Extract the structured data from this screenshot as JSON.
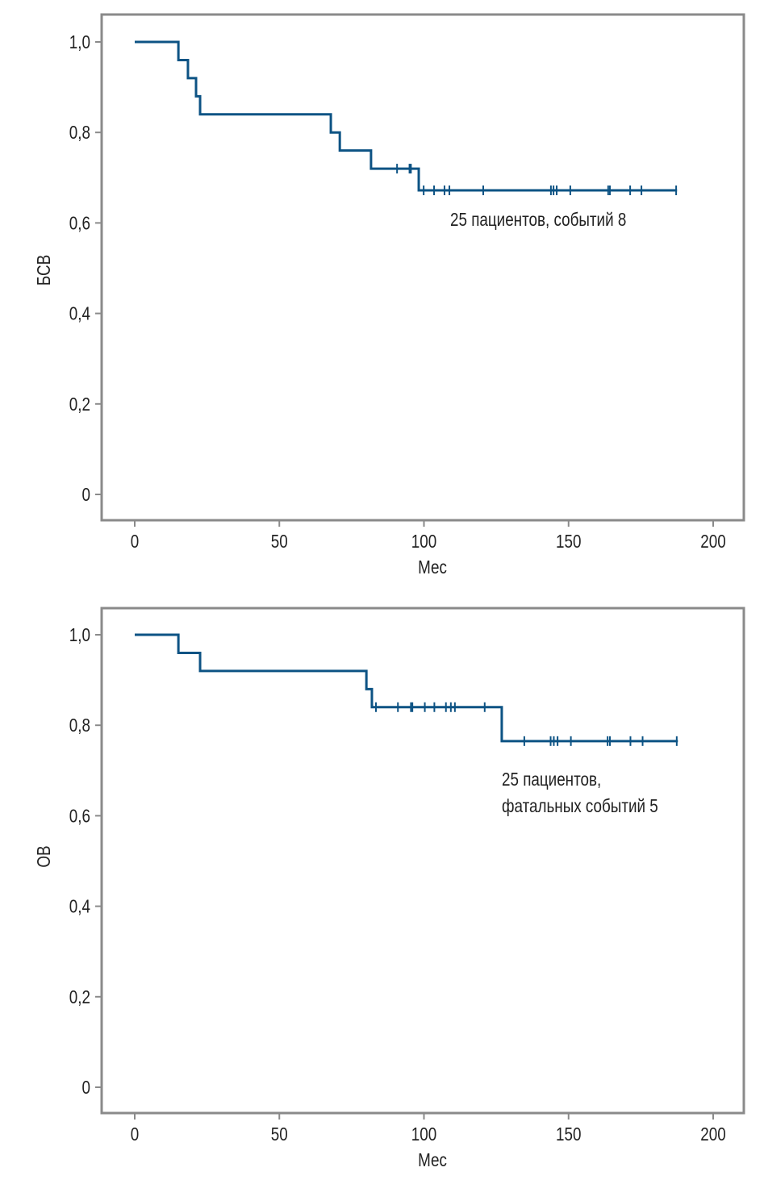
{
  "chart_data": [
    {
      "type": "line",
      "subtype": "kaplan-meier-step",
      "xlabel": "Мес",
      "ylabel": "БСВ",
      "xlim": [
        -11,
        211
      ],
      "ylim": [
        -0.06,
        1.06
      ],
      "xticks": [
        0,
        50,
        100,
        150,
        200
      ],
      "yticks": [
        0,
        0.2,
        0.4,
        0.6,
        0.8,
        1.0
      ],
      "xtick_labels": [
        "0",
        "50",
        "100",
        "150",
        "200"
      ],
      "ytick_labels": [
        "0",
        "0,2",
        "0,4",
        "0,6",
        "0,8",
        "1,0"
      ],
      "annotation": [
        "25 пациентов, событий 8"
      ],
      "color": "#0d5384",
      "steps": [
        [
          0,
          1.0
        ],
        [
          15.1,
          0.96
        ],
        [
          18.4,
          0.92
        ],
        [
          21.2,
          0.88
        ],
        [
          22.6,
          0.84
        ],
        [
          67.8,
          0.8
        ],
        [
          70.9,
          0.76
        ],
        [
          81.7,
          0.72
        ],
        [
          98.2,
          0.672
        ]
      ],
      "end_x": 187.5,
      "censored": [
        90.7,
        95.0,
        95.5,
        99.9,
        103.5,
        107.1,
        108.8,
        120.5,
        143.9,
        144.8,
        145.9,
        150.6,
        163.7,
        164.3,
        171.3,
        175.2,
        187.2
      ]
    },
    {
      "type": "line",
      "subtype": "kaplan-meier-step",
      "xlabel": "Мес",
      "ylabel": "ОВ",
      "xlim": [
        -11,
        211
      ],
      "ylim": [
        -0.06,
        1.06
      ],
      "xticks": [
        0,
        50,
        100,
        150,
        200
      ],
      "yticks": [
        0,
        0.2,
        0.4,
        0.6,
        0.8,
        1.0
      ],
      "xtick_labels": [
        "0",
        "50",
        "100",
        "150",
        "200"
      ],
      "ytick_labels": [
        "0",
        "0,2",
        "0,4",
        "0,6",
        "0,8",
        "1,0"
      ],
      "annotation": [
        "25 пациентов,",
        "фатальных событий 5"
      ],
      "color": "#0d5384",
      "steps": [
        [
          0,
          1.0
        ],
        [
          15.1,
          0.96
        ],
        [
          22.6,
          0.92
        ],
        [
          80.1,
          0.88
        ],
        [
          82.0,
          0.84
        ],
        [
          126.9,
          0.765
        ]
      ],
      "end_x": 187.8,
      "censored": [
        83.4,
        91.0,
        95.5,
        96.0,
        100.3,
        103.6,
        107.6,
        109.3,
        110.7,
        121.0,
        134.7,
        143.8,
        144.9,
        146.2,
        150.8,
        163.5,
        164.3,
        171.4,
        175.6,
        187.4
      ]
    }
  ]
}
